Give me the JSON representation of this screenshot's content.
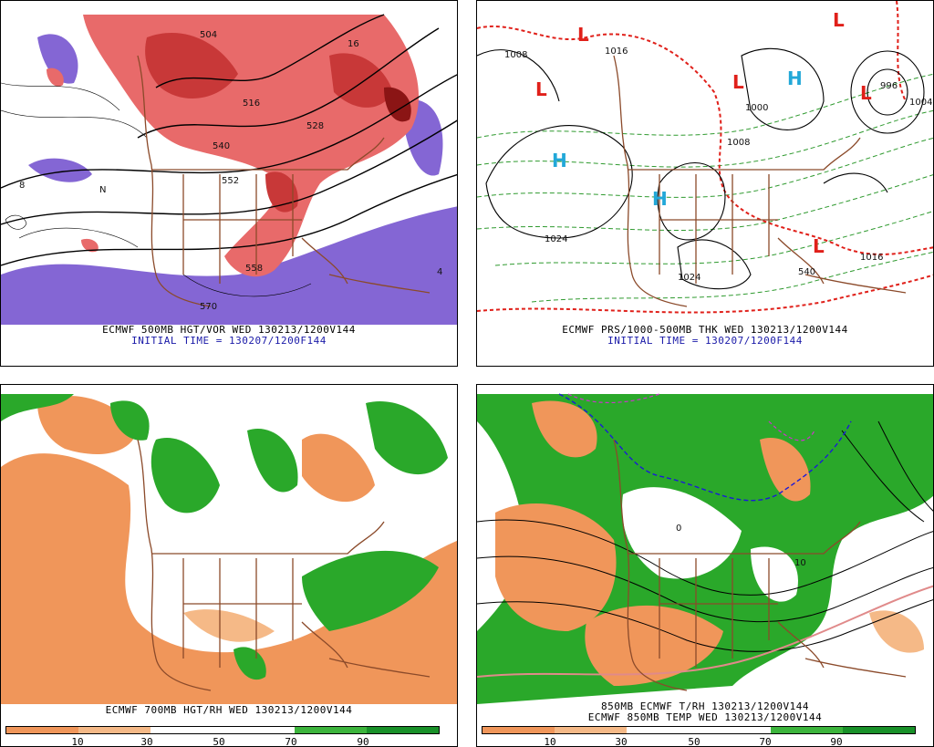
{
  "panels": [
    {
      "id": "500mb",
      "caption_line1": "ECMWF 500MB HGT/VOR WED 130213/1200V144",
      "caption_line2": "INITIAL TIME = 130207/1200F144",
      "contour_labels": [
        "504",
        "516",
        "528",
        "540",
        "552",
        "558",
        "570",
        "16",
        "8",
        "4",
        "N"
      ]
    },
    {
      "id": "pressure",
      "caption_line1": "ECMWF PRS/1000-500MB THK WED 130213/1200V144",
      "caption_line2": "INITIAL TIME = 130207/1200F144",
      "contour_labels": [
        "1008",
        "1016",
        "1000",
        "1008",
        "1024",
        "1024",
        "1016",
        "540",
        "996",
        "1004"
      ],
      "high_label": "H",
      "low_label": "L"
    },
    {
      "id": "700mb",
      "caption_line1": "ECMWF 700MB HGT/RH WED 130213/1200V144"
    },
    {
      "id": "850mb",
      "caption_line1": "850MB ECMWF T/RH 130213/1200V144",
      "caption_line2": "ECMWF 850MB TEMP WED 130213/1200V144",
      "contour_labels": [
        "0",
        "10"
      ]
    }
  ],
  "rh_colorbar": {
    "ticks": [
      "10",
      "30",
      "50",
      "70",
      "90"
    ],
    "colors": [
      "#f0965a",
      "#f5b987",
      "#ffffff",
      "#ffffff",
      "#3cb43c",
      "#189028"
    ]
  },
  "colors": {
    "vorticity_low": "#8466d4",
    "vorticity_high": "#e04a4a",
    "rh_dry": "#f0965a",
    "rh_moist": "#2aa82a",
    "low_marker": "#e0201a",
    "high_marker": "#22a8d8",
    "borders": "#8b4a2a"
  }
}
